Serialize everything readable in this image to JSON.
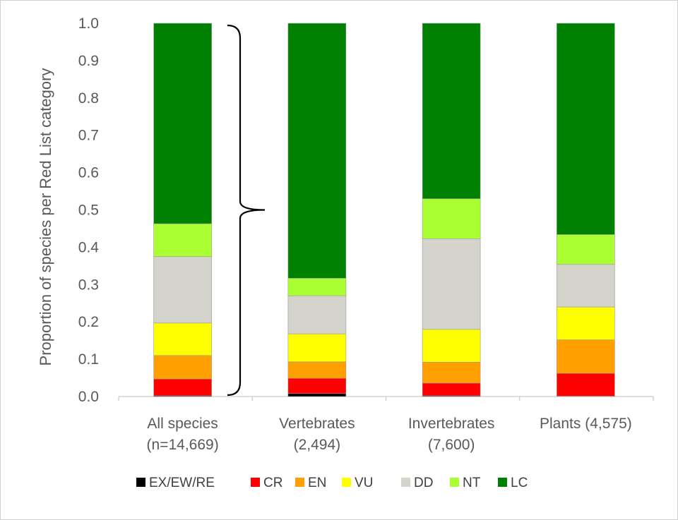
{
  "chart_data": {
    "type": "bar",
    "stacked": true,
    "ylabel": "Proportion of species per Red List category",
    "xlabel": "",
    "ylim": [
      0,
      1
    ],
    "yticks": [
      "0.0",
      "0.1",
      "0.2",
      "0.3",
      "0.4",
      "0.5",
      "0.6",
      "0.7",
      "0.8",
      "0.9",
      "1.0"
    ],
    "categories": [
      [
        "All species",
        "(n=14,669)"
      ],
      [
        "Vertebrates",
        "(2,494)"
      ],
      [
        "Invertebrates",
        "(7,600)"
      ],
      [
        "Plants (4,575)"
      ]
    ],
    "series": [
      {
        "name": "EX/EW/RE",
        "color": "#000000",
        "values": [
          0.002,
          0.008,
          0.002,
          0.001
        ]
      },
      {
        "name": "CR",
        "color": "#ff0000",
        "values": [
          0.045,
          0.041,
          0.034,
          0.061
        ]
      },
      {
        "name": "EN",
        "color": "#ffa000",
        "values": [
          0.063,
          0.044,
          0.056,
          0.09
        ]
      },
      {
        "name": "VU",
        "color": "#ffff00",
        "values": [
          0.087,
          0.075,
          0.088,
          0.088
        ]
      },
      {
        "name": "DD",
        "color": "#d4d4cc",
        "values": [
          0.178,
          0.102,
          0.243,
          0.114
        ]
      },
      {
        "name": "NT",
        "color": "#aaff33",
        "values": [
          0.088,
          0.047,
          0.107,
          0.08
        ]
      },
      {
        "name": "LC",
        "color": "#008000",
        "values": [
          0.537,
          0.683,
          0.47,
          0.566
        ]
      }
    ],
    "grid": false,
    "legend": "bottom",
    "annotation": "brace spanning All species bar"
  }
}
